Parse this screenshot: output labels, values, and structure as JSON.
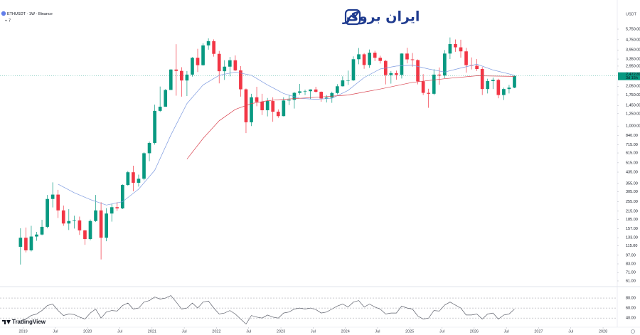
{
  "header": {
    "symbol": "ETHUSDT · 1W · Binance",
    "indicators": 7,
    "brand": "ایران بروکر",
    "watermark": "TradingView"
  },
  "chart_data": [
    {
      "type": "candlestick",
      "currency": "USDT",
      "log_scale": true,
      "up_color": "#089981",
      "down_color": "#f23645",
      "x": [
        "2018-12",
        "2019-01",
        "2019-02",
        "2019-03",
        "2019-04",
        "2019-05",
        "2019-06",
        "2019-07",
        "2019-08",
        "2019-09",
        "2019-10",
        "2019-11",
        "2019-12",
        "2020-01",
        "2020-02",
        "2020-03",
        "2020-04",
        "2020-05",
        "2020-06",
        "2020-07",
        "2020-08",
        "2020-09",
        "2020-10",
        "2020-11",
        "2020-12",
        "2021-01",
        "2021-02",
        "2021-03",
        "2021-04",
        "2021-05",
        "2021-06",
        "2021-07",
        "2021-08",
        "2021-09",
        "2021-10",
        "2021-11",
        "2021-12",
        "2022-01",
        "2022-02",
        "2022-03",
        "2022-04",
        "2022-05",
        "2022-06",
        "2022-07",
        "2022-08",
        "2022-09",
        "2022-10",
        "2022-11",
        "2022-12",
        "2023-01",
        "2023-02",
        "2023-03",
        "2023-04",
        "2023-05",
        "2023-06",
        "2023-07",
        "2023-08",
        "2023-09",
        "2023-10",
        "2023-11",
        "2023-12",
        "2024-01",
        "2024-02",
        "2024-03",
        "2024-04",
        "2024-05",
        "2024-06",
        "2024-07",
        "2024-08",
        "2024-09",
        "2024-10",
        "2024-11",
        "2024-12",
        "2025-01",
        "2025-02",
        "2025-03",
        "2025-04",
        "2025-05",
        "2025-06",
        "2025-07",
        "2025-08",
        "2025-09",
        "2025-10",
        "2025-11",
        "2025-12",
        "2026-01",
        "2026-02",
        "2026-03",
        "2026-04",
        "2026-05",
        "2026-06",
        "2026-07",
        "2026-08"
      ],
      "open": [
        113,
        133,
        106,
        136,
        141,
        162,
        268,
        290,
        218,
        172,
        180,
        182,
        152,
        130,
        180,
        218,
        133,
        206,
        231,
        226,
        345,
        434,
        359,
        386,
        612,
        737,
        1315,
        1418,
        1918,
        2772,
        2706,
        2275,
        2530,
        3430,
        3000,
        4290,
        4630,
        3680,
        2690,
        2920,
        3280,
        2730,
        1940,
        1070,
        1680,
        1550,
        1330,
        1570,
        1295,
        1196,
        1585,
        1605,
        1820,
        1870,
        1875,
        1935,
        1855,
        1645,
        1670,
        1815,
        2050,
        2280,
        2280,
        3340,
        3650,
        3010,
        3760,
        3430,
        3240,
        2510,
        2600,
        2520,
        3700,
        3330,
        3290,
        2240,
        1820,
        1790,
        2530,
        2490,
        3700,
        4390,
        4140,
        3850,
        3000,
        2970,
        2800,
        1950,
        2250,
        2300,
        1750,
        1950,
        2000
      ],
      "high": [
        158,
        160,
        165,
        148,
        184,
        288,
        362,
        316,
        238,
        223,
        198,
        195,
        153,
        185,
        288,
        253,
        227,
        245,
        253,
        349,
        445,
        488,
        416,
        622,
        756,
        1470,
        2040,
        1945,
        2795,
        4380,
        2890,
        2700,
        3470,
        4030,
        4460,
        4870,
        4780,
        3880,
        3280,
        3480,
        3580,
        2950,
        1970,
        1790,
        2030,
        1790,
        1660,
        1680,
        1350,
        1680,
        1740,
        1850,
        2140,
        1930,
        1940,
        2030,
        1870,
        1750,
        1860,
        2130,
        2450,
        2720,
        3520,
        4090,
        3730,
        3980,
        3890,
        3560,
        3300,
        2700,
        2720,
        3720,
        4110,
        3740,
        3330,
        2550,
        1960,
        2790,
        2880,
        3940,
        4950,
        4770,
        4750,
        4100,
        3450,
        3350,
        2900,
        2350,
        2400,
        2350,
        2000,
        2100,
        2490
      ],
      "low": [
        82,
        102,
        104,
        126,
        139,
        158,
        230,
        190,
        165,
        153,
        157,
        140,
        117,
        127,
        177,
        90,
        125,
        178,
        216,
        223,
        340,
        308,
        335,
        376,
        530,
        715,
        1290,
        1420,
        1930,
        1730,
        1700,
        1720,
        2440,
        2650,
        2970,
        3970,
        3500,
        2160,
        2300,
        2450,
        2700,
        1700,
        880,
        1000,
        1430,
        1220,
        1190,
        1080,
        1160,
        1190,
        1460,
        1370,
        1760,
        1750,
        1620,
        1830,
        1550,
        1530,
        1520,
        1770,
        2040,
        2100,
        2260,
        3050,
        2810,
        2860,
        3230,
        3090,
        2120,
        2150,
        2310,
        2360,
        3100,
        2920,
        2120,
        1750,
        1390,
        1750,
        2110,
        2370,
        3350,
        3820,
        3440,
        2620,
        2780,
        2700,
        1750,
        1800,
        1950,
        1650,
        1600,
        1800,
        1980
      ],
      "close": [
        133,
        106,
        136,
        141,
        162,
        268,
        290,
        218,
        172,
        180,
        182,
        152,
        130,
        180,
        218,
        133,
        206,
        231,
        226,
        345,
        434,
        359,
        386,
        612,
        737,
        1315,
        1418,
        1918,
        2772,
        2706,
        2275,
        2530,
        3430,
        3000,
        4290,
        4630,
        3680,
        2690,
        2920,
        3280,
        2730,
        1940,
        1070,
        1680,
        1550,
        1330,
        1570,
        1295,
        1196,
        1585,
        1605,
        1820,
        1870,
        1875,
        1935,
        1855,
        1645,
        1670,
        1815,
        2050,
        2280,
        2280,
        3340,
        3650,
        3010,
        3760,
        3430,
        3240,
        2510,
        2600,
        2520,
        3700,
        3330,
        3290,
        2240,
        1820,
        1790,
        2530,
        2490,
        3700,
        4390,
        4140,
        3850,
        3000,
        2970,
        2800,
        1950,
        2250,
        2300,
        1750,
        1950,
        2000,
        2472.81
      ],
      "overlays": [
        {
          "color": "#7e9be0",
          "x": [
            "2019-07",
            "2019-10",
            "2020-01",
            "2020-04",
            "2020-07",
            "2020-10",
            "2021-01",
            "2021-04",
            "2021-07",
            "2021-10",
            "2022-01",
            "2022-04",
            "2022-07",
            "2022-10",
            "2023-01",
            "2023-04",
            "2023-07",
            "2023-10",
            "2024-01",
            "2024-04",
            "2024-07",
            "2024-10",
            "2025-01",
            "2025-04",
            "2025-07",
            "2025-10",
            "2026-01",
            "2026-04",
            "2026-08"
          ],
          "values": [
            350,
            300,
            265,
            240,
            255,
            320,
            450,
            850,
            1500,
            2100,
            2500,
            2650,
            2500,
            2100,
            1800,
            1650,
            1620,
            1650,
            1900,
            2400,
            2800,
            2950,
            3000,
            2800,
            2650,
            2850,
            3050,
            2750,
            2500
          ]
        },
        {
          "color": "#d9434f",
          "x": [
            "2021-07",
            "2021-10",
            "2022-01",
            "2022-04",
            "2022-07",
            "2022-10",
            "2023-01",
            "2023-07",
            "2024-01",
            "2024-07",
            "2025-01",
            "2025-07",
            "2026-01",
            "2026-08"
          ],
          "values": [
            550,
            800,
            1100,
            1350,
            1500,
            1580,
            1620,
            1680,
            1750,
            1950,
            2200,
            2350,
            2480,
            2450
          ]
        }
      ],
      "last_price": {
        "value": 2472.81,
        "label": "2,472.81"
      },
      "countdown": "3d 15h",
      "ylim": [
        57.2,
        6620
      ],
      "yticks": [
        {
          "value": 5750,
          "label": "5,750.00"
        },
        {
          "value": 4750,
          "label": "4,750.00"
        },
        {
          "value": 3950,
          "label": "3,950.00"
        },
        {
          "value": 3350,
          "label": "3,350.00"
        },
        {
          "value": 2950,
          "label": "2,950.00"
        },
        {
          "value": 2050,
          "label": "2,050.00"
        },
        {
          "value": 1750,
          "label": "1,750.00"
        },
        {
          "value": 1450,
          "label": "1,450.00"
        },
        {
          "value": 1250,
          "label": "1,250.00"
        },
        {
          "value": 1000,
          "label": "1,000.00"
        },
        {
          "value": 840,
          "label": "840.00"
        },
        {
          "value": 715,
          "label": "715.00"
        },
        {
          "value": 615,
          "label": "615.00"
        },
        {
          "value": 515,
          "label": "515.00"
        },
        {
          "value": 435,
          "label": "435.00"
        },
        {
          "value": 355,
          "label": "355.00"
        },
        {
          "value": 305,
          "label": "305.00"
        },
        {
          "value": 255,
          "label": "255.00"
        },
        {
          "value": 215,
          "label": "215.00"
        },
        {
          "value": 185,
          "label": "185.00"
        },
        {
          "value": 157,
          "label": "157.00"
        },
        {
          "value": 133,
          "label": "133.00"
        },
        {
          "value": 115,
          "label": "115.00"
        },
        {
          "value": 97,
          "label": "97.00"
        },
        {
          "value": 83,
          "label": "83.00"
        },
        {
          "value": 71,
          "label": "71.00"
        },
        {
          "value": 61,
          "label": "61.00"
        }
      ],
      "xlim": [
        2018.64,
        2028.22
      ],
      "xticks": [
        2019,
        {
          "value": 2019.5,
          "label": "Jul"
        },
        2020,
        {
          "value": 2020.5,
          "label": "Jul"
        },
        2021,
        {
          "value": 2021.5,
          "label": "Jul"
        },
        2022,
        {
          "value": 2022.5,
          "label": "Jul"
        },
        2023,
        {
          "value": 2023.5,
          "label": "Jul"
        },
        2024,
        {
          "value": 2024.5,
          "label": "Jul"
        },
        2025,
        {
          "value": 2025.5,
          "label": "Jul"
        },
        2026,
        {
          "value": 2026.5,
          "label": "Jul"
        },
        2027,
        {
          "value": 2027.5,
          "label": "Jul"
        },
        2028
      ]
    },
    {
      "type": "line",
      "color": "#5d606b",
      "x": [
        "2018-12",
        "2019-01",
        "2019-02",
        "2019-03",
        "2019-04",
        "2019-05",
        "2019-06",
        "2019-07",
        "2019-08",
        "2019-09",
        "2019-10",
        "2019-11",
        "2019-12",
        "2020-01",
        "2020-02",
        "2020-03",
        "2020-04",
        "2020-05",
        "2020-06",
        "2020-07",
        "2020-08",
        "2020-09",
        "2020-10",
        "2020-11",
        "2020-12",
        "2021-01",
        "2021-02",
        "2021-03",
        "2021-04",
        "2021-05",
        "2021-06",
        "2021-07",
        "2021-08",
        "2021-09",
        "2021-10",
        "2021-11",
        "2021-12",
        "2022-01",
        "2022-02",
        "2022-03",
        "2022-04",
        "2022-05",
        "2022-06",
        "2022-07",
        "2022-08",
        "2022-09",
        "2022-10",
        "2022-11",
        "2022-12",
        "2023-01",
        "2023-02",
        "2023-03",
        "2023-04",
        "2023-05",
        "2023-06",
        "2023-07",
        "2023-08",
        "2023-09",
        "2023-10",
        "2023-11",
        "2023-12",
        "2024-01",
        "2024-02",
        "2024-03",
        "2024-04",
        "2024-05",
        "2024-06",
        "2024-07",
        "2024-08",
        "2024-09",
        "2024-10",
        "2024-11",
        "2024-12",
        "2025-01",
        "2025-02",
        "2025-03",
        "2025-04",
        "2025-05",
        "2025-06",
        "2025-07",
        "2025-08",
        "2025-09",
        "2025-10",
        "2025-11",
        "2025-12",
        "2026-01",
        "2026-02",
        "2026-03",
        "2026-04",
        "2026-05",
        "2026-06",
        "2026-07",
        "2026-08"
      ],
      "values": [
        35,
        38,
        45,
        48,
        55,
        65,
        68,
        55,
        45,
        48,
        47,
        42,
        38,
        50,
        58,
        40,
        52,
        55,
        54,
        65,
        70,
        58,
        60,
        72,
        75,
        82,
        78,
        80,
        85,
        72,
        58,
        60,
        70,
        60,
        72,
        74,
        60,
        48,
        50,
        55,
        48,
        38,
        28,
        45,
        42,
        40,
        46,
        42,
        40,
        50,
        52,
        58,
        60,
        58,
        60,
        57,
        50,
        52,
        58,
        64,
        68,
        62,
        72,
        75,
        62,
        68,
        62,
        58,
        48,
        50,
        50,
        64,
        60,
        58,
        44,
        38,
        40,
        55,
        54,
        66,
        72,
        66,
        60,
        46,
        46,
        48,
        38,
        48,
        50,
        38,
        46,
        48,
        58
      ],
      "ylim": [
        26,
        100
      ],
      "yticks": [
        {
          "value": 80,
          "label": "80.00"
        },
        {
          "value": 60,
          "label": "60.00"
        },
        {
          "value": 40,
          "label": "40.00"
        }
      ]
    }
  ]
}
